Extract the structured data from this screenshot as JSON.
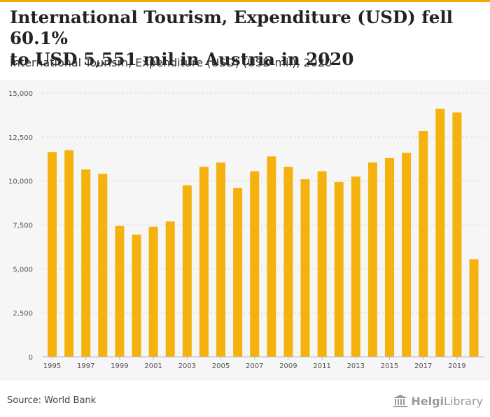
{
  "header": {
    "title_line1": "International Tourism, Expenditure (USD) fell 60.1%",
    "title_line2": "to USD 5,551 mil in Austria in 2020",
    "subtitle": "International Tourism, Expenditure (USD) (USD mil), 2020"
  },
  "footer": {
    "source": "Source: World Bank",
    "logo_bold": "Helgi",
    "logo_rest": "Library"
  },
  "colors": {
    "accent": "#f5a800",
    "bar": "#f5b20f",
    "grid": "#d9d9d9"
  },
  "chart_data": {
    "type": "bar",
    "title": "International Tourism, Expenditure (USD) fell 60.1% to USD 5,551 mil in Austria in 2020",
    "subtitle": "International Tourism, Expenditure (USD) (USD mil), 2020",
    "xlabel": "",
    "ylabel": "",
    "ylim": [
      0,
      15000
    ],
    "yticks": [
      0,
      2500,
      5000,
      7500,
      10000,
      12500,
      15000
    ],
    "ytick_labels": [
      "0",
      "2,500",
      "5,000",
      "7,500",
      "10,000",
      "12,500",
      "15,000"
    ],
    "categories": [
      "1995",
      "1996",
      "1997",
      "1998",
      "1999",
      "2000",
      "2001",
      "2002",
      "2003",
      "2004",
      "2005",
      "2006",
      "2007",
      "2008",
      "2009",
      "2010",
      "2011",
      "2012",
      "2013",
      "2014",
      "2015",
      "2016",
      "2017",
      "2018",
      "2019",
      "2020"
    ],
    "xtick_labels": [
      "1995",
      "1997",
      "1999",
      "2001",
      "2003",
      "2005",
      "2007",
      "2009",
      "2011",
      "2013",
      "2015",
      "2017",
      "2019"
    ],
    "values": [
      11650,
      11750,
      10650,
      10400,
      7450,
      6950,
      7400,
      7700,
      9750,
      10800,
      11050,
      9600,
      10550,
      11400,
      10800,
      10100,
      10550,
      9950,
      10250,
      11050,
      11300,
      11600,
      12850,
      14100,
      13900,
      5551
    ],
    "grid": true
  }
}
